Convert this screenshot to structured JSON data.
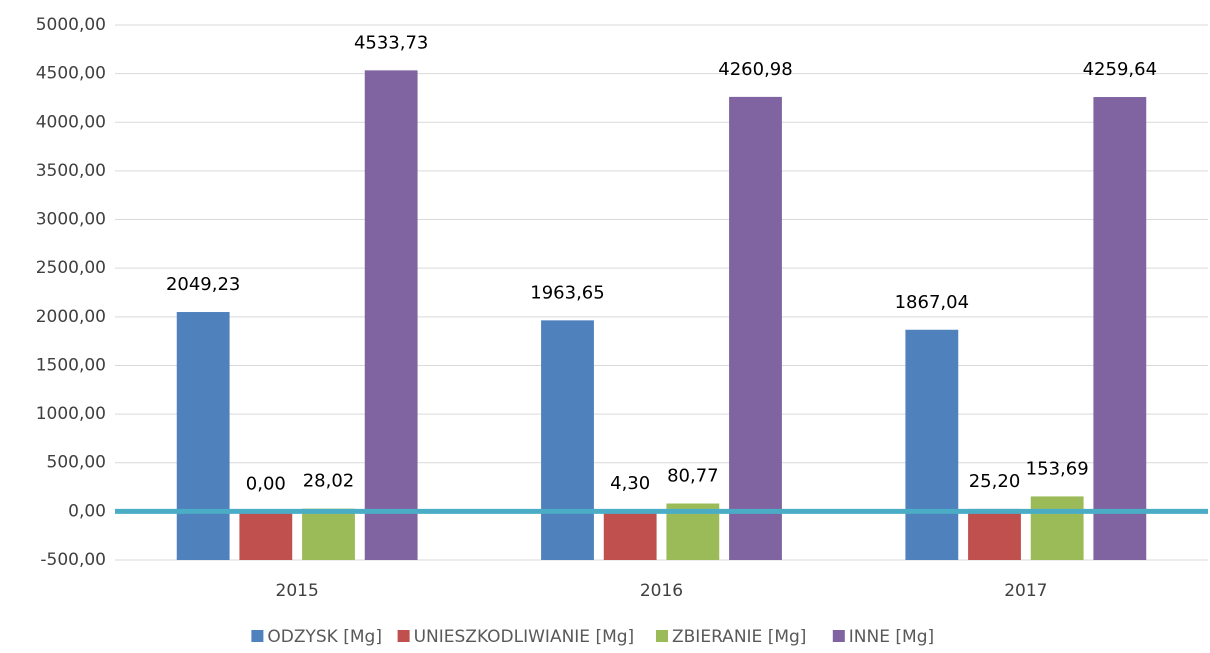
{
  "chart_data": {
    "type": "bar",
    "categories": [
      "2015",
      "2016",
      "2017"
    ],
    "series": [
      {
        "name": "ODZYSK [Mg]",
        "color": "#4f81bd",
        "values": [
          2049.23,
          1963.65,
          1867.04
        ],
        "value_labels": [
          "2049,23",
          "1963,65",
          "1867,04"
        ]
      },
      {
        "name": "UNIESZKODLIWIANIE [Mg]",
        "color": "#c0504d",
        "values": [
          0,
          4.3,
          25.2
        ],
        "value_labels": [
          "0,00",
          "4,30",
          "25,20"
        ]
      },
      {
        "name": "ZBIERANIE [Mg]",
        "color": "#9bbb59",
        "values": [
          28.02,
          80.77,
          153.69
        ],
        "value_labels": [
          "28,02",
          "80,77",
          "153,69"
        ]
      },
      {
        "name": "INNE [Mg]",
        "color": "#8064a2",
        "values": [
          4533.73,
          4260.98,
          4259.64
        ],
        "value_labels": [
          "4533,73",
          "4260,98",
          "4259,64"
        ]
      }
    ],
    "ylim": [
      -500,
      5000
    ],
    "yticks": [
      {
        "value": -500,
        "label": "-500,00"
      },
      {
        "value": 0,
        "label": "0,00"
      },
      {
        "value": 500,
        "label": "500,00"
      },
      {
        "value": 1000,
        "label": "1000,00"
      },
      {
        "value": 1500,
        "label": "1500,00"
      },
      {
        "value": 2000,
        "label": "2000,00"
      },
      {
        "value": 2500,
        "label": "2500,00"
      },
      {
        "value": 3000,
        "label": "3000,00"
      },
      {
        "value": 3500,
        "label": "3500,00"
      },
      {
        "value": 4000,
        "label": "4000,00"
      },
      {
        "value": 4500,
        "label": "4500,00"
      },
      {
        "value": 5000,
        "label": "5000,00"
      }
    ],
    "grid": true,
    "zero_line_color": "#4bacc6",
    "legend": "bottom"
  }
}
